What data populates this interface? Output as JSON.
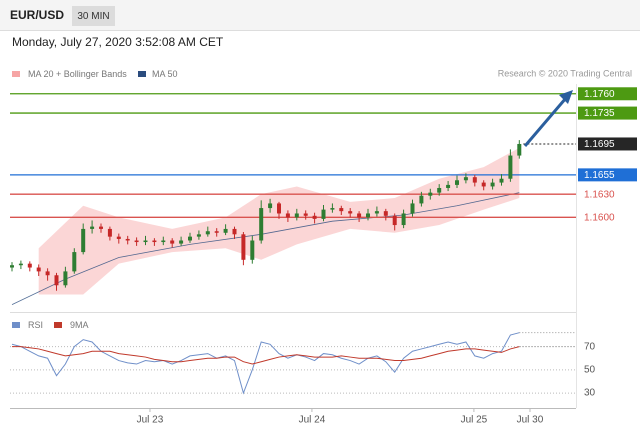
{
  "header": {
    "symbol": "EUR/USD",
    "timeframe": "30 MIN"
  },
  "chart_data": {
    "type": "candlestick",
    "timestamp": "Monday, July 27, 2020 3:52:08 AM CET",
    "credit": "Research © 2020 Trading Central",
    "xlim": [
      0,
      63
    ],
    "xticks": [
      {
        "value": 15.5,
        "label": "Jul 23"
      },
      {
        "value": 33.7,
        "label": "Jul 24"
      },
      {
        "value": 51.9,
        "label": "Jul 25"
      },
      {
        "value": 58.2,
        "label": "Jul 30"
      }
    ],
    "ylim": [
      1.148,
      1.184
    ],
    "up_color": "#2e7d32",
    "down_color": "#c62828",
    "candles": [
      [
        1.1535,
        1.1542,
        1.153,
        1.1538
      ],
      [
        1.1538,
        1.1544,
        1.1533,
        1.154
      ],
      [
        1.154,
        1.1543,
        1.153,
        1.1535
      ],
      [
        1.1535,
        1.1539,
        1.1524,
        1.153
      ],
      [
        1.153,
        1.1534,
        1.1518,
        1.1525
      ],
      [
        1.1525,
        1.1528,
        1.1505,
        1.1512
      ],
      [
        1.1512,
        1.1536,
        1.1509,
        1.153
      ],
      [
        1.153,
        1.156,
        1.1527,
        1.1555
      ],
      [
        1.1555,
        1.1592,
        1.1552,
        1.1585
      ],
      [
        1.1585,
        1.1596,
        1.1579,
        1.1588
      ],
      [
        1.1588,
        1.1592,
        1.158,
        1.1585
      ],
      [
        1.1585,
        1.1588,
        1.157,
        1.1575
      ],
      [
        1.1575,
        1.1579,
        1.1566,
        1.1572
      ],
      [
        1.1572,
        1.1576,
        1.1565,
        1.157
      ],
      [
        1.157,
        1.1574,
        1.1563,
        1.1568
      ],
      [
        1.1568,
        1.1576,
        1.1564,
        1.157
      ],
      [
        1.157,
        1.1573,
        1.1563,
        1.1568
      ],
      [
        1.1568,
        1.1575,
        1.1564,
        1.157
      ],
      [
        1.157,
        1.1573,
        1.1561,
        1.1566
      ],
      [
        1.1566,
        1.1575,
        1.1563,
        1.157
      ],
      [
        1.157,
        1.158,
        1.1567,
        1.1575
      ],
      [
        1.1575,
        1.1583,
        1.1571,
        1.1578
      ],
      [
        1.1578,
        1.1588,
        1.1575,
        1.1582
      ],
      [
        1.1582,
        1.1586,
        1.1575,
        1.158
      ],
      [
        1.158,
        1.1591,
        1.1577,
        1.1585
      ],
      [
        1.1585,
        1.1588,
        1.1572,
        1.1578
      ],
      [
        1.1578,
        1.1581,
        1.1538,
        1.1545
      ],
      [
        1.1545,
        1.1576,
        1.154,
        1.157
      ],
      [
        1.157,
        1.1622,
        1.1566,
        1.1612
      ],
      [
        1.1612,
        1.1624,
        1.1606,
        1.1618
      ],
      [
        1.1618,
        1.162,
        1.1598,
        1.1605
      ],
      [
        1.1605,
        1.1609,
        1.1594,
        1.16
      ],
      [
        1.16,
        1.1611,
        1.1596,
        1.1605
      ],
      [
        1.1605,
        1.1609,
        1.1597,
        1.1602
      ],
      [
        1.1602,
        1.1606,
        1.1592,
        1.1598
      ],
      [
        1.1598,
        1.1616,
        1.1595,
        1.161
      ],
      [
        1.161,
        1.1618,
        1.1606,
        1.1612
      ],
      [
        1.1612,
        1.1615,
        1.1603,
        1.1608
      ],
      [
        1.1608,
        1.1612,
        1.16,
        1.1605
      ],
      [
        1.1605,
        1.1608,
        1.1594,
        1.16
      ],
      [
        1.16,
        1.1611,
        1.1596,
        1.1605
      ],
      [
        1.1605,
        1.1614,
        1.1601,
        1.1608
      ],
      [
        1.1608,
        1.1611,
        1.1596,
        1.1602
      ],
      [
        1.1602,
        1.1605,
        1.1583,
        1.159
      ],
      [
        1.159,
        1.161,
        1.1586,
        1.1605
      ],
      [
        1.1605,
        1.1623,
        1.1601,
        1.1618
      ],
      [
        1.1618,
        1.1633,
        1.1614,
        1.1628
      ],
      [
        1.1628,
        1.1637,
        1.1623,
        1.1632
      ],
      [
        1.1632,
        1.1643,
        1.1628,
        1.1638
      ],
      [
        1.1638,
        1.1647,
        1.1634,
        1.1642
      ],
      [
        1.1642,
        1.1654,
        1.1638,
        1.1648
      ],
      [
        1.1648,
        1.1657,
        1.1644,
        1.1652
      ],
      [
        1.1652,
        1.1655,
        1.164,
        1.1645
      ],
      [
        1.1645,
        1.1648,
        1.1635,
        1.164
      ],
      [
        1.164,
        1.165,
        1.1636,
        1.1645
      ],
      [
        1.1645,
        1.1656,
        1.1641,
        1.165
      ],
      [
        1.165,
        1.1688,
        1.1646,
        1.168
      ],
      [
        1.168,
        1.17,
        1.1676,
        1.1695
      ]
    ],
    "bollinger": {
      "name": "MA 20 + Bollinger Bands",
      "color": "#f6a5a5",
      "x": [
        3,
        8,
        12,
        18,
        24,
        28,
        32,
        38,
        43,
        48,
        53,
        57
      ],
      "upper": [
        1.156,
        1.1615,
        1.16,
        1.1585,
        1.16,
        1.163,
        1.164,
        1.162,
        1.1625,
        1.165,
        1.1665,
        1.169
      ],
      "lower": [
        1.15,
        1.15,
        1.154,
        1.1555,
        1.156,
        1.1545,
        1.1565,
        1.1585,
        1.158,
        1.159,
        1.161,
        1.1625
      ]
    },
    "ma50": {
      "name": "MA 50",
      "color": "#2b4c7e",
      "x": [
        0,
        6,
        12,
        20,
        28,
        36,
        44,
        50,
        57
      ],
      "values": [
        1.1487,
        1.152,
        1.1548,
        1.1565,
        1.1578,
        1.1595,
        1.1603,
        1.1615,
        1.1632
      ]
    },
    "levels": [
      {
        "value": 1.176,
        "label": "1.1760",
        "color": "#4d9a12",
        "boxed": true,
        "line": "solid"
      },
      {
        "value": 1.1735,
        "label": "1.1735",
        "color": "#4d9a12",
        "boxed": true,
        "line": "solid"
      },
      {
        "value": 1.1695,
        "label": "1.1695",
        "color": "#262626",
        "boxed": true,
        "line": "dotted"
      },
      {
        "value": 1.1655,
        "label": "1.1655",
        "color": "#1f6fd6",
        "boxed": true,
        "line": "solid"
      },
      {
        "value": 1.163,
        "label": "1.1630",
        "color": "#d9534f",
        "boxed": false,
        "line": "solid"
      },
      {
        "value": 1.16,
        "label": "1.1600",
        "color": "#d9534f",
        "boxed": false,
        "line": "solid"
      }
    ],
    "rsi_panel": {
      "ylim": [
        18,
        80
      ],
      "yticks": [
        70,
        50,
        30
      ],
      "series": [
        {
          "name": "RSI",
          "color": "#6f8fc9",
          "values": [
            72,
            70,
            66,
            62,
            60,
            45,
            55,
            70,
            76,
            74,
            66,
            62,
            58,
            56,
            55,
            58,
            57,
            58,
            55,
            58,
            62,
            63,
            64,
            60,
            62,
            58,
            30,
            50,
            74,
            72,
            64,
            60,
            63,
            61,
            58,
            64,
            63,
            60,
            58,
            55,
            60,
            62,
            57,
            48,
            60,
            66,
            68,
            70,
            72,
            74,
            72,
            74,
            62,
            60,
            64,
            66,
            80,
            82
          ]
        },
        {
          "name": "9MA",
          "color": "#c0392b",
          "values": [
            70,
            70,
            69,
            68,
            66,
            64,
            62,
            63,
            64,
            66,
            66,
            66,
            64,
            63,
            62,
            61,
            59,
            58,
            57,
            57,
            58,
            59,
            60,
            60,
            61,
            61,
            57,
            55,
            57,
            59,
            61,
            62,
            63,
            62,
            61,
            61,
            61,
            62,
            61,
            60,
            60,
            60,
            59,
            58,
            58,
            59,
            60,
            62,
            64,
            66,
            67,
            68,
            68,
            67,
            66,
            65,
            68,
            70
          ]
        }
      ]
    }
  }
}
